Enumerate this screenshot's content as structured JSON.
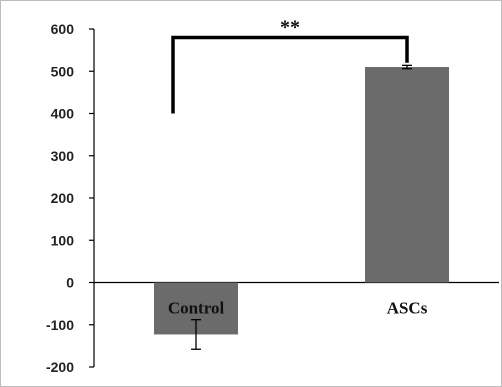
{
  "chart_data": {
    "type": "bar",
    "title": "",
    "xlabel": "",
    "ylabel": "",
    "categories": [
      "Control",
      "ASCs"
    ],
    "values": [
      -123,
      510
    ],
    "error": [
      35,
      4
    ],
    "ylim": [
      -200,
      600
    ],
    "yticks": [
      -200,
      -100,
      0,
      100,
      200,
      300,
      400,
      500,
      600
    ],
    "grid": false,
    "significance": {
      "label": "**",
      "bracket_y": 580,
      "left_start_y": 400,
      "right_start_y": 520
    },
    "colors": {
      "bar": "#6b6b6b",
      "axis": "#000000",
      "text": "#111111"
    }
  }
}
